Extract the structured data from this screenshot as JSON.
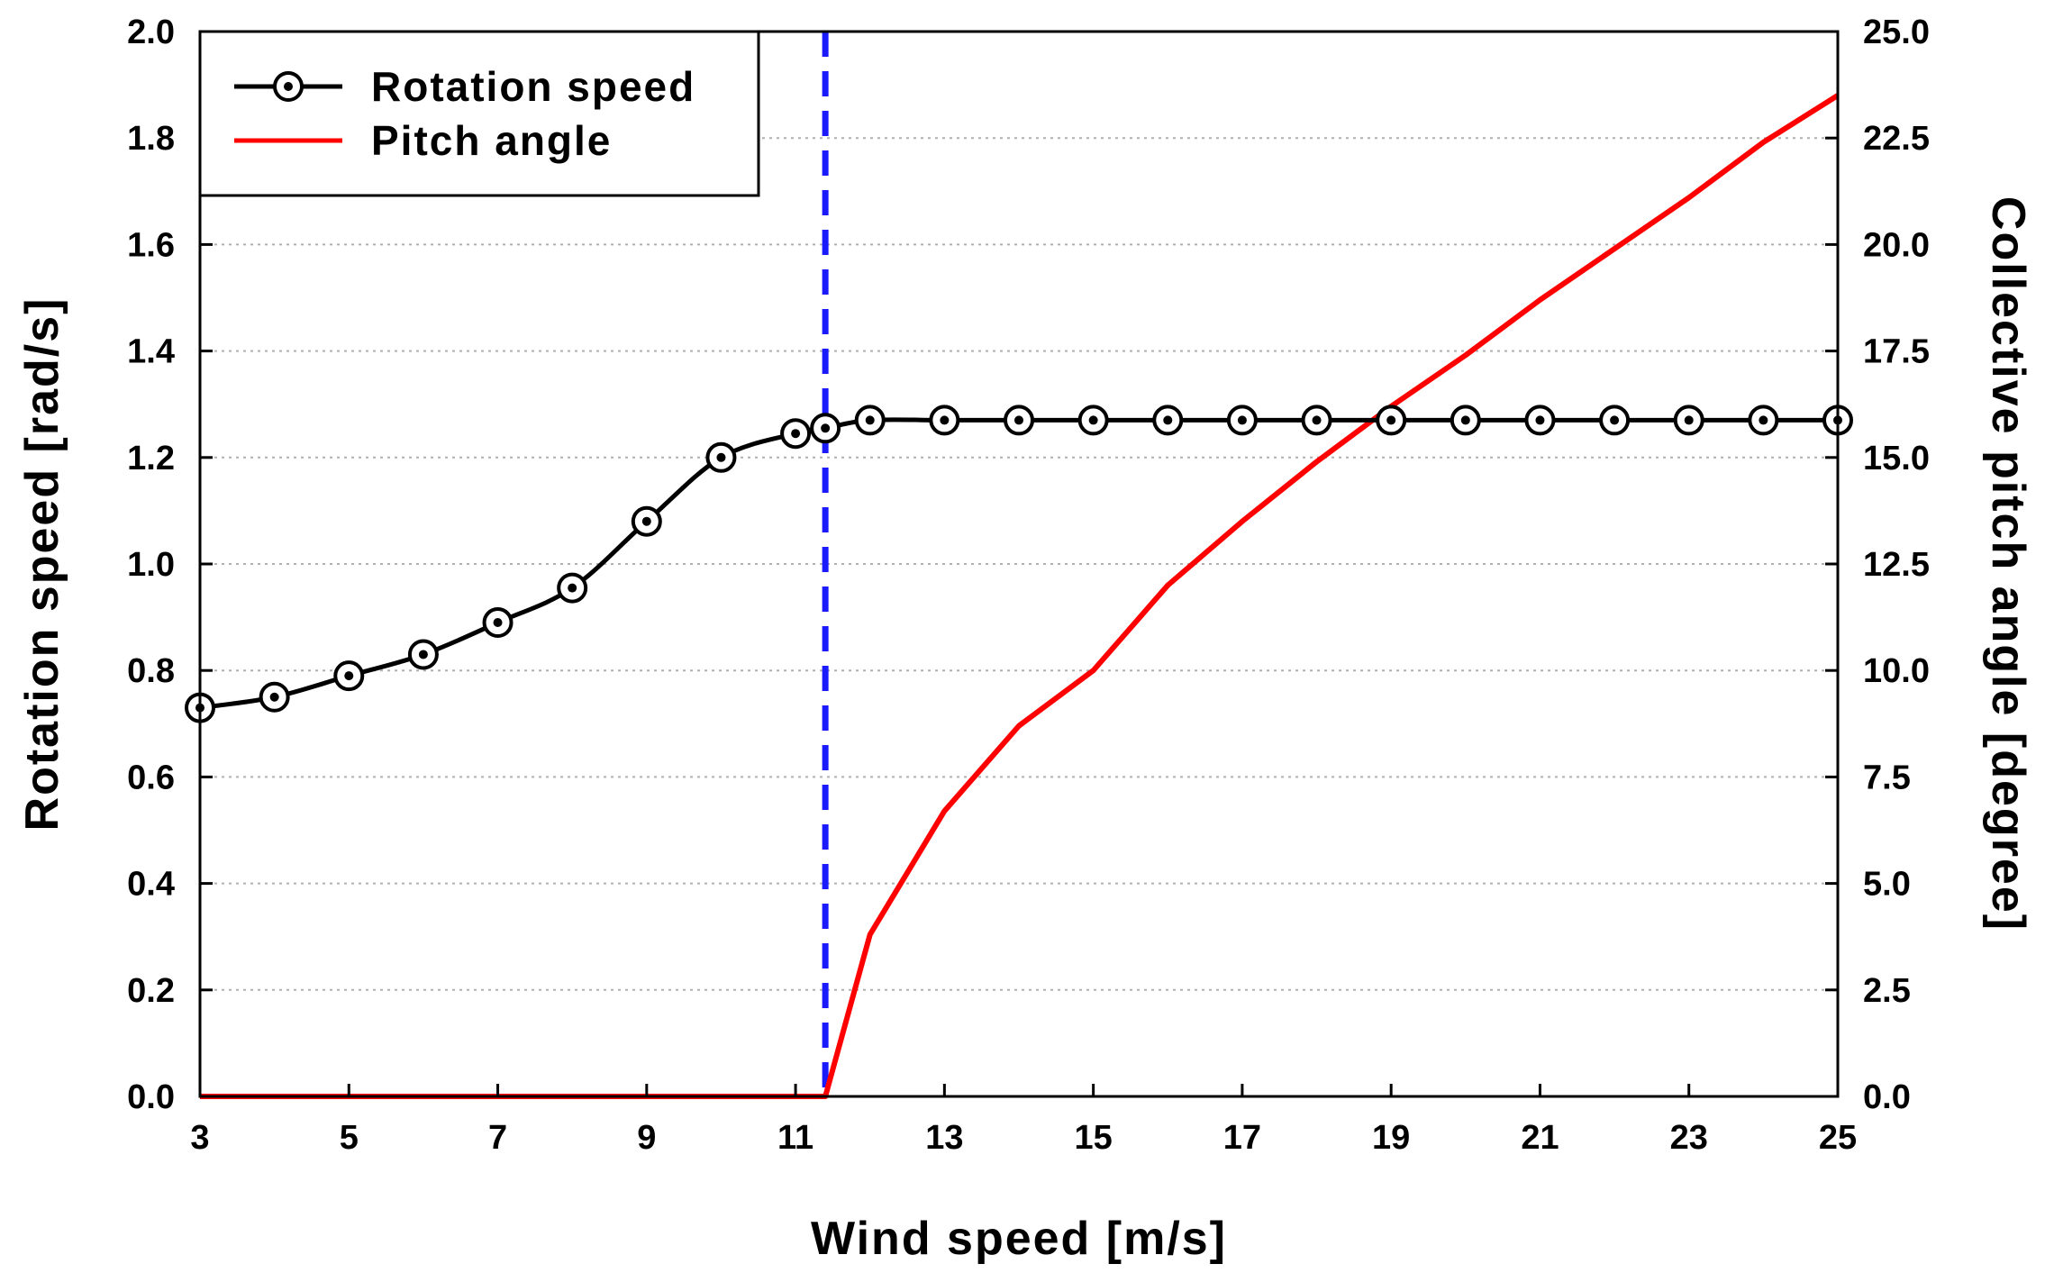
{
  "chart_data": {
    "type": "line",
    "title": "",
    "xlabel": "Wind speed [m/s]",
    "ylabel_left": "Rotation speed [rad/s]",
    "ylabel_right": "Collective pitch angle [degree]",
    "xlim": [
      3,
      25
    ],
    "ylim_left": [
      0,
      2.0
    ],
    "ylim_right": [
      0,
      25.0
    ],
    "x_ticks": [
      "3",
      "5",
      "7",
      "9",
      "11",
      "13",
      "15",
      "17",
      "19",
      "21",
      "23",
      "25"
    ],
    "y_left_ticks": [
      "0.0",
      "0.2",
      "0.4",
      "0.6",
      "0.8",
      "1.0",
      "1.2",
      "1.4",
      "1.6",
      "1.8",
      "2.0"
    ],
    "y_right_ticks": [
      "0.0",
      "2.5",
      "5.0",
      "7.5",
      "10.0",
      "12.5",
      "15.0",
      "17.5",
      "20.0",
      "22.5",
      "25.0"
    ],
    "grid": "horizontal-dotted",
    "legend_position": "top-left",
    "rated_wind_speed": 11.4,
    "series": [
      {
        "name": "Rotation speed",
        "axis": "left",
        "color": "#000000",
        "marker": "circle-dot",
        "x": [
          3,
          4,
          5,
          6,
          7,
          8,
          9,
          10,
          11,
          11.4,
          12,
          13,
          14,
          15,
          16,
          17,
          18,
          19,
          20,
          21,
          22,
          23,
          24,
          25
        ],
        "values": [
          0.73,
          0.75,
          0.79,
          0.83,
          0.89,
          0.955,
          1.08,
          1.2,
          1.245,
          1.255,
          1.27,
          1.27,
          1.27,
          1.27,
          1.27,
          1.27,
          1.27,
          1.27,
          1.27,
          1.27,
          1.27,
          1.27,
          1.27,
          1.27
        ]
      },
      {
        "name": "Pitch angle",
        "axis": "right",
        "color": "#ff0000",
        "marker": "none",
        "x": [
          3,
          11.4,
          12,
          13,
          14,
          15,
          16,
          17,
          18,
          19,
          20,
          21,
          22,
          23,
          24,
          25
        ],
        "values": [
          0,
          0,
          3.8,
          6.7,
          8.7,
          10.0,
          12.0,
          13.5,
          14.9,
          16.2,
          17.4,
          18.7,
          19.9,
          21.1,
          22.4,
          23.5
        ]
      }
    ]
  }
}
